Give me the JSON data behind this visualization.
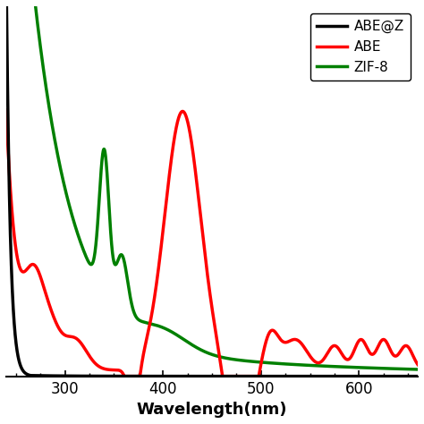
{
  "title": "",
  "xlabel": "Wavelength(nm)",
  "ylabel": "",
  "xlim": [
    240,
    660
  ],
  "background_color": "#ffffff",
  "legend_entries": [
    "ZIF-8",
    "ABE",
    "ABE@Z"
  ],
  "legend_colors": [
    "#000000",
    "#ff0000",
    "#008000"
  ],
  "linewidth": 2.5,
  "xlabel_fontsize": 13,
  "xlabel_fontweight": "bold",
  "tick_fontsize": 12
}
